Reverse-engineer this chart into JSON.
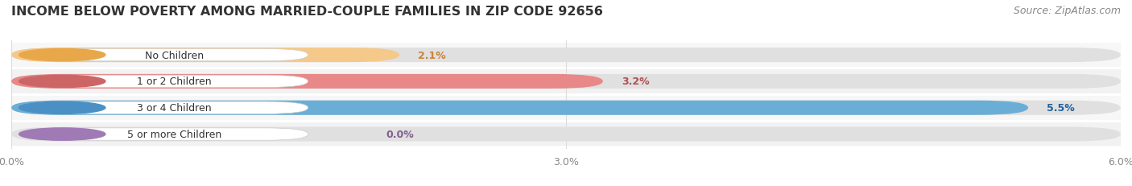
{
  "title": "INCOME BELOW POVERTY AMONG MARRIED-COUPLE FAMILIES IN ZIP CODE 92656",
  "source": "Source: ZipAtlas.com",
  "categories": [
    "No Children",
    "1 or 2 Children",
    "3 or 4 Children",
    "5 or more Children"
  ],
  "values": [
    2.1,
    3.2,
    5.5,
    0.0
  ],
  "bar_colors": [
    "#f5c98a",
    "#e88888",
    "#6aaed6",
    "#c9aed6"
  ],
  "bar_edge_colors": [
    "#e8a84a",
    "#cc6666",
    "#4a90c4",
    "#a07ab5"
  ],
  "label_pill_left_colors": [
    "#e8a84a",
    "#cc6666",
    "#4a90c4",
    "#a07ab5"
  ],
  "value_colors": [
    "#c8843a",
    "#b05050",
    "#2060a0",
    "#806090"
  ],
  "row_bg_colors": [
    "#f7f7f7",
    "#f2f2f2",
    "#f7f7f7",
    "#f2f2f2"
  ],
  "xlim": [
    0,
    6.0
  ],
  "xticks": [
    0.0,
    3.0,
    6.0
  ],
  "xtick_labels": [
    "0.0%",
    "3.0%",
    "6.0%"
  ],
  "background_color": "#ffffff",
  "title_fontsize": 11.5,
  "source_fontsize": 9,
  "cat_label_fontsize": 9,
  "value_fontsize": 9
}
